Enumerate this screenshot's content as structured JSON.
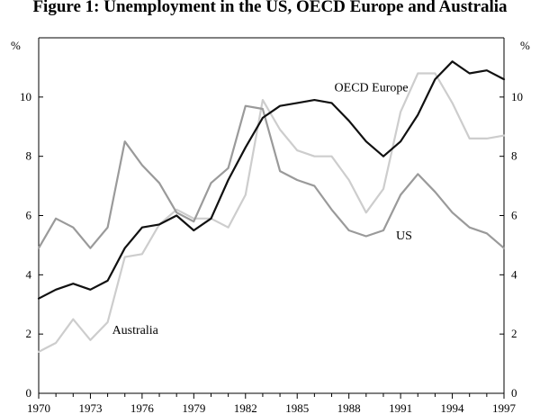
{
  "chart_data": {
    "type": "line",
    "title": "Figure 1: Unemployment in the US, OECD Europe and Australia",
    "ylabel_left": "%",
    "ylabel_right": "%",
    "xlim": [
      1970,
      1997
    ],
    "ylim": [
      0,
      12
    ],
    "x_tick_labels": [
      "1970",
      "1973",
      "1976",
      "1979",
      "1982",
      "1985",
      "1988",
      "1991",
      "1994",
      "1997"
    ],
    "y_tick_labels": [
      "0",
      "2",
      "4",
      "6",
      "8",
      "10"
    ],
    "x": [
      1970,
      1971,
      1972,
      1973,
      1974,
      1975,
      1976,
      1977,
      1978,
      1979,
      1980,
      1981,
      1982,
      1983,
      1984,
      1985,
      1986,
      1987,
      1988,
      1989,
      1990,
      1991,
      1992,
      1993,
      1994,
      1995,
      1996,
      1997
    ],
    "series": [
      {
        "name": "OECD Europe",
        "color": "#111111",
        "values": [
          3.2,
          3.5,
          3.7,
          3.5,
          3.8,
          4.9,
          5.6,
          5.7,
          6.0,
          5.5,
          5.9,
          7.2,
          8.3,
          9.3,
          9.7,
          9.8,
          9.9,
          9.8,
          9.2,
          8.5,
          8.0,
          8.5,
          9.4,
          10.6,
          11.2,
          10.8,
          10.9,
          10.6
        ]
      },
      {
        "name": "US",
        "color": "#9a9a9a",
        "values": [
          4.9,
          5.9,
          5.6,
          4.9,
          5.6,
          8.5,
          7.7,
          7.1,
          6.1,
          5.8,
          7.1,
          7.6,
          9.7,
          9.6,
          7.5,
          7.2,
          7.0,
          6.2,
          5.5,
          5.3,
          5.5,
          6.7,
          7.4,
          6.8,
          6.1,
          5.6,
          5.4,
          4.9
        ]
      },
      {
        "name": "Australia",
        "color": "#cdcdcd",
        "values": [
          1.4,
          1.7,
          2.5,
          1.8,
          2.4,
          4.6,
          4.7,
          5.7,
          6.2,
          5.9,
          5.9,
          5.6,
          6.7,
          9.9,
          8.9,
          8.2,
          8.0,
          8.0,
          7.2,
          6.1,
          6.9,
          9.5,
          10.8,
          10.8,
          9.8,
          8.6,
          8.6,
          8.7
        ]
      }
    ],
    "annotations": [
      {
        "text": "OECD Europe",
        "x": 1989.3,
        "y": 10.2
      },
      {
        "text": "US",
        "x": 1991.2,
        "y": 5.2
      },
      {
        "text": "Australia",
        "x": 1975.6,
        "y": 2.0
      }
    ]
  }
}
